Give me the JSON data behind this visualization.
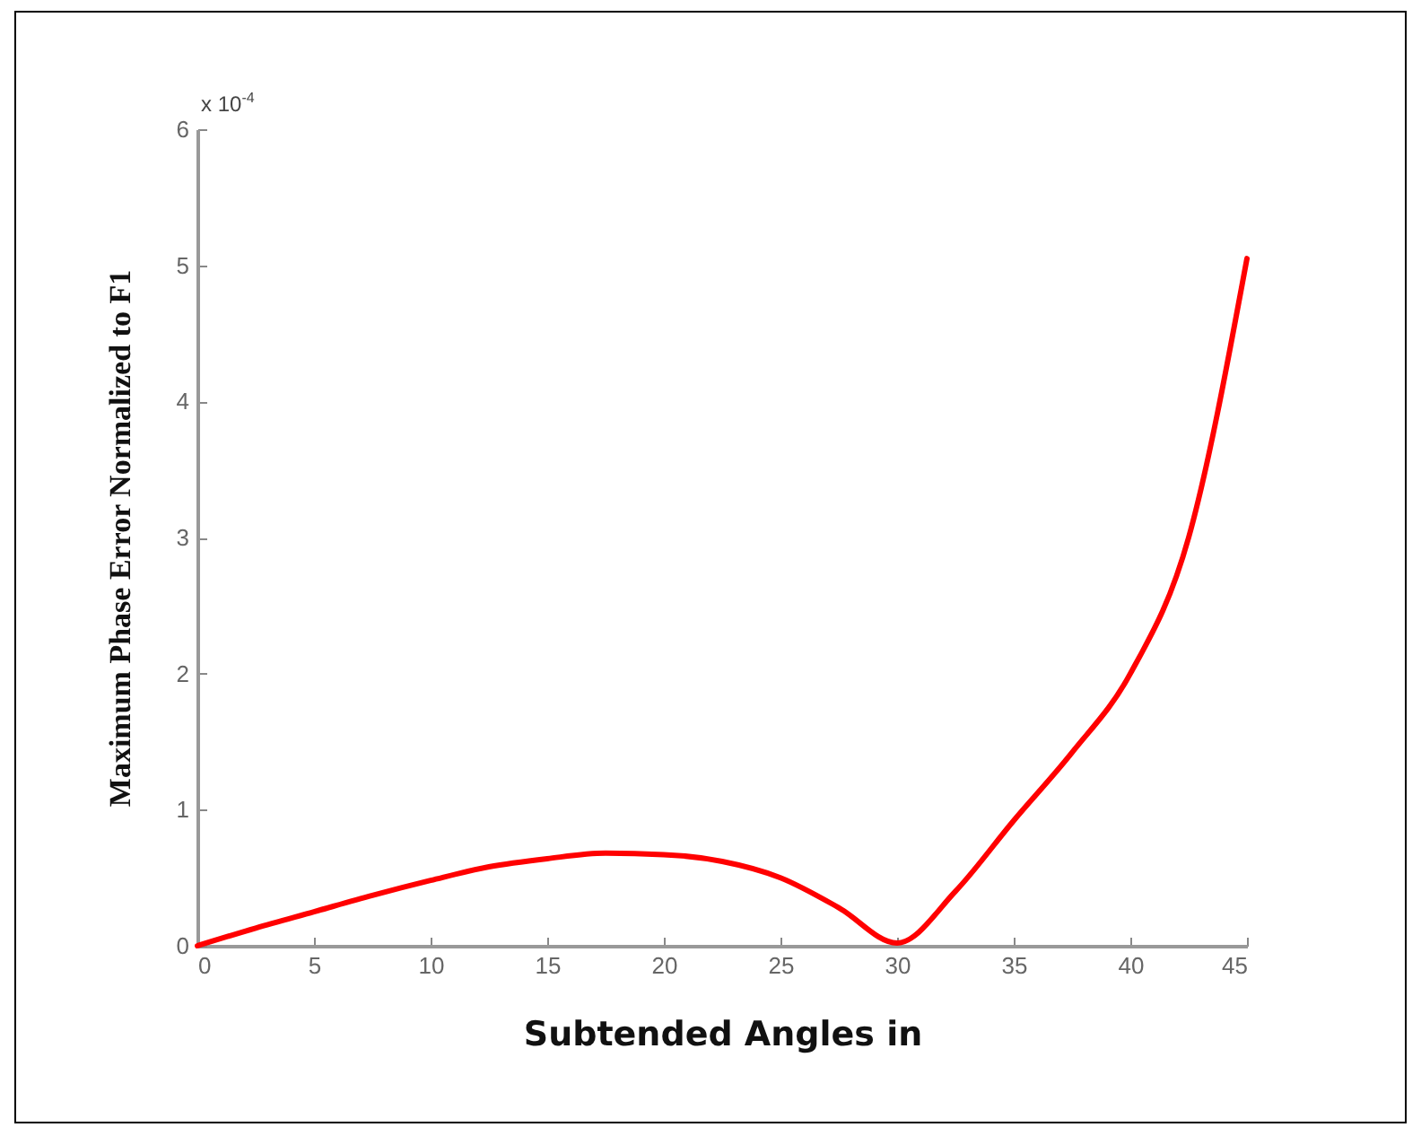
{
  "chart_data": {
    "type": "line",
    "xlabel": "Subtended Angles in",
    "ylabel": "Maximum Phase Error Normalized to F1",
    "annotations": [
      "x 10$^{-4}$"
    ],
    "x": [
      0,
      2.5,
      5,
      7.5,
      10,
      12.5,
      15,
      17.5,
      20,
      22.5,
      25,
      27.5,
      30,
      32.5,
      35,
      37.5,
      40,
      42.5,
      45
    ],
    "series": [
      {
        "color": "#ff0000",
        "values": [
          0,
          0.13,
          0.25,
          0.37,
          0.48,
          0.58,
          0.64,
          0.68,
          0.67,
          0.62,
          0.5,
          0.28,
          0.02,
          0.4,
          0.92,
          1.42,
          2.0,
          3.0,
          5.05
        ]
      }
    ],
    "xlim": [
      0,
      45
    ],
    "xticks": [
      0,
      5,
      10,
      15,
      20,
      25,
      30,
      35,
      40,
      45
    ],
    "ylim": [
      0,
      6
    ],
    "yticks": [
      0,
      1,
      2,
      3,
      4,
      5,
      6
    ],
    "grid": false,
    "marker": "none",
    "line_style": "solid"
  }
}
